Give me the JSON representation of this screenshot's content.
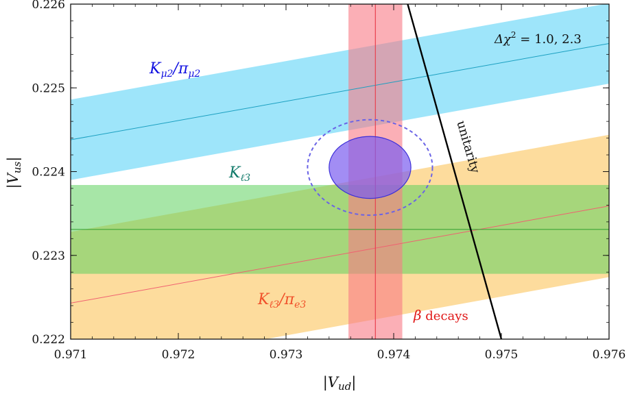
{
  "chart_data": {
    "type": "scatter",
    "xlabel": "|V_ud|",
    "ylabel": "|V_us|",
    "xlim": [
      0.971,
      0.976
    ],
    "ylim": [
      0.222,
      0.226
    ],
    "xticks": [
      0.971,
      0.972,
      0.973,
      0.974,
      0.975,
      0.976
    ],
    "yticks": [
      0.222,
      0.223,
      0.224,
      0.225,
      0.226
    ],
    "xtick_labels": [
      "0.971",
      "0.972",
      "0.973",
      "0.974",
      "0.975",
      "0.976"
    ],
    "ytick_labels": [
      "0.222",
      "0.223",
      "0.224",
      "0.225",
      "0.226"
    ],
    "grid": false,
    "bands": [
      {
        "name": "Kμ2/πμ2",
        "label_main": "K",
        "label_sub": "μ2",
        "label_main2": "/π",
        "label_sub2": "μ2",
        "color": "#4fd0f5",
        "line_color": "#1a9fc0",
        "center": [
          [
            0.971,
            0.22438
          ],
          [
            0.976,
            0.22553
          ]
        ],
        "half_width": 0.00048
      },
      {
        "name": "Kℓ3/πe3",
        "label_main": "K",
        "label_sub": "ℓ3",
        "label_main2": "/π",
        "label_sub2": "e3",
        "color": "#fdd68c",
        "line_color": "#f06070",
        "center": [
          [
            0.971,
            0.22243
          ],
          [
            0.976,
            0.22359
          ]
        ],
        "half_width": 0.00085
      },
      {
        "name": "Kℓ3",
        "label_main": "K",
        "label_sub": "ℓ3",
        "color": "#5fd15f",
        "line_color": "#2e9e2e",
        "center": [
          [
            0.971,
            0.22331
          ],
          [
            0.976,
            0.22331
          ]
        ],
        "half_width": 0.00053
      },
      {
        "name": "β decays",
        "label_main": "β decays",
        "color": "#f87a85",
        "line_color": "#e8404f",
        "vertical": true,
        "center_x": 0.97383,
        "half_width": 0.00025
      }
    ],
    "unitarity": {
      "label": "unitarity",
      "points": [
        [
          0.97413,
          0.226
        ],
        [
          0.975,
          0.222
        ]
      ]
    },
    "ellipses": {
      "label": "Δχ² = 1.0, 2.3",
      "center": [
        0.97378,
        0.22405
      ],
      "inner": {
        "rx": 0.00038,
        "ry": 0.00037,
        "delta_chi2": 1.0,
        "color": "#7b5cf0"
      },
      "outer": {
        "rx": 0.00058,
        "ry": 0.00057,
        "delta_chi2": 2.3,
        "color": "#6a63e6"
      }
    }
  }
}
